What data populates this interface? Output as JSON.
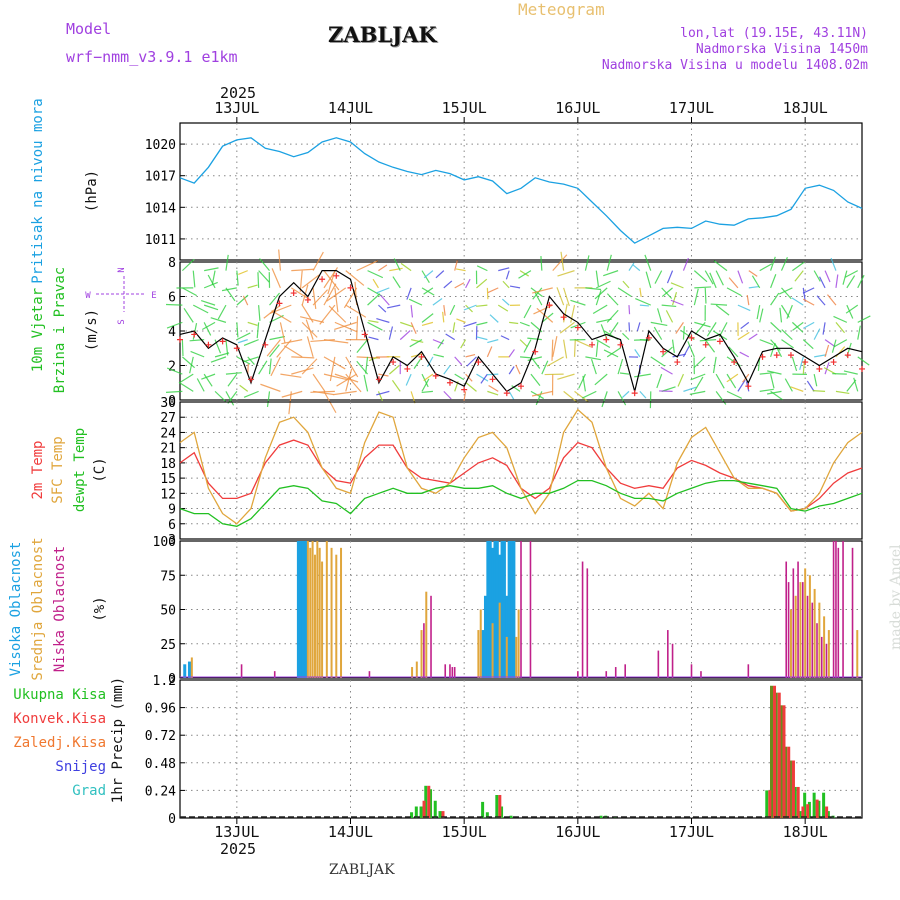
{
  "header": {
    "model_label": "Model",
    "model_name": "wrf−nmm_v3.9.1  e1km",
    "title": "ZABLJAK",
    "meteogram": "Meteogram",
    "lonlat": "lon,lat (19.15E, 43.11N)",
    "elevation": "Nadmorska Visina 1450m",
    "model_elevation": "Nadmorska Visina u modelu 1408.02m",
    "watermark": "made by Angel",
    "footer_title": "ZABLJAK"
  },
  "colors": {
    "pressure": "#1ba1e2",
    "t2m": "#f03c3c",
    "sfc_temp": "#e0a63c",
    "dewpoint": "#22c022",
    "high_cloud": "#1ba1e2",
    "mid_cloud": "#e0a63c",
    "low_cloud": "#c0208a",
    "precip_total": "#22c022",
    "precip_conv": "#f03c3c",
    "precip_strat": "#f07830",
    "snow": "#4040e0",
    "hail": "#30c0c0",
    "header_purple": "#a040e0",
    "header_gold": "#e8c070"
  },
  "chart_data": [
    {
      "type": "line",
      "panel": "pressure",
      "ylabel": [
        "Pritisak na nivou mora",
        "(hPa)"
      ],
      "ylim": [
        1009,
        1022
      ],
      "yticks": [
        1011,
        1014,
        1017,
        1020
      ],
      "x_unit": "hours from 2025-07-12 12:00",
      "x": [
        0,
        3,
        6,
        9,
        12,
        15,
        18,
        21,
        24,
        27,
        30,
        33,
        36,
        39,
        42,
        45,
        48,
        51,
        54,
        57,
        60,
        63,
        66,
        69,
        72,
        75,
        78,
        81,
        84,
        87,
        90,
        93,
        96,
        99,
        102,
        105,
        108,
        111,
        114,
        117,
        120,
        123,
        126,
        129,
        132,
        135,
        138,
        141,
        144
      ],
      "values": [
        1016.8,
        1016.3,
        1017.8,
        1019.8,
        1020.4,
        1020.6,
        1019.6,
        1019.3,
        1018.8,
        1019.2,
        1020.2,
        1020.6,
        1020.2,
        1019.1,
        1018.3,
        1017.8,
        1017.4,
        1017.1,
        1017.5,
        1017.2,
        1016.6,
        1016.9,
        1016.5,
        1015.3,
        1015.8,
        1016.8,
        1016.4,
        1016.2,
        1015.8,
        1014.5,
        1013.2,
        1011.8,
        1010.6,
        1011.3,
        1012.0,
        1012.1,
        1012.0,
        1012.7,
        1012.4,
        1012.3,
        1012.9,
        1013.0,
        1013.2,
        1013.8,
        1015.8,
        1016.1,
        1015.6,
        1014.5,
        1013.9
      ]
    },
    {
      "type": "line",
      "panel": "wind",
      "ylabel": [
        "10m Vjetar",
        "Brzina i Pravac",
        "(m/s)"
      ],
      "compass": [
        "N",
        "S",
        "W",
        "E"
      ],
      "ylim": [
        0,
        8
      ],
      "yticks": [
        0,
        2,
        4,
        6,
        8
      ],
      "x_unit": "hours from 2025-07-12 12:00",
      "x": [
        0,
        3,
        6,
        9,
        12,
        15,
        18,
        21,
        24,
        27,
        30,
        33,
        36,
        39,
        42,
        45,
        48,
        51,
        54,
        57,
        60,
        63,
        66,
        69,
        72,
        75,
        78,
        81,
        84,
        87,
        90,
        93,
        96,
        99,
        102,
        105,
        108,
        111,
        114,
        117,
        120,
        123,
        126,
        129,
        132,
        135,
        138,
        141,
        144
      ],
      "series": [
        {
          "values": [
            3.8,
            4.0,
            3.0,
            3.6,
            3.2,
            1.0,
            3.5,
            6.0,
            6.8,
            6.0,
            7.5,
            7.5,
            7.0,
            4.0,
            1.0,
            2.5,
            2.0,
            2.8,
            1.5,
            1.2,
            0.8,
            2.5,
            1.5,
            0.5,
            1.0,
            3.0,
            6.0,
            5.0,
            4.5,
            3.5,
            3.8,
            3.5,
            0.5,
            4.0,
            3.0,
            2.5,
            4.0,
            3.5,
            3.8,
            2.5,
            1.0,
            2.8,
            3.0,
            3.0,
            2.5,
            2.0,
            2.5,
            3.0,
            2.8
          ]
        },
        {
          "values": [
            3.5,
            3.8,
            3.2,
            3.4,
            3.0,
            1.2,
            3.2,
            5.6,
            6.2,
            5.8,
            7.0,
            7.2,
            6.5,
            3.8,
            1.2,
            2.2,
            1.8,
            2.5,
            1.4,
            1.0,
            0.6,
            2.2,
            1.2,
            0.4,
            0.8,
            2.8,
            5.5,
            4.8,
            4.2,
            3.2,
            3.5,
            3.2,
            0.4,
            3.6,
            2.8,
            2.2,
            3.6,
            3.2,
            3.4,
            2.2,
            0.8,
            2.5,
            2.6,
            2.6,
            2.2,
            1.8,
            2.2,
            2.6,
            1.8
          ]
        }
      ]
    },
    {
      "type": "line",
      "panel": "temperature",
      "ylabel": [
        "2m Temp",
        "SFC Temp",
        "dewpt Temp",
        "(C)"
      ],
      "ylim": [
        3,
        30
      ],
      "yticks": [
        3,
        6,
        9,
        12,
        15,
        18,
        21,
        24,
        27,
        30
      ],
      "x_unit": "hours from 2025-07-12 12:00",
      "x": [
        0,
        3,
        6,
        9,
        12,
        15,
        18,
        21,
        24,
        27,
        30,
        33,
        36,
        39,
        42,
        45,
        48,
        51,
        54,
        57,
        60,
        63,
        66,
        69,
        72,
        75,
        78,
        81,
        84,
        87,
        90,
        93,
        96,
        99,
        102,
        105,
        108,
        111,
        114,
        117,
        120,
        123,
        126,
        129,
        132,
        135,
        138,
        141,
        144
      ],
      "series": [
        {
          "name": "2m Temp",
          "values": [
            18,
            20,
            14,
            11,
            11,
            12,
            18,
            21.5,
            22.5,
            21.5,
            17,
            14.5,
            14,
            19,
            21.5,
            21.5,
            17,
            15,
            14.5,
            14,
            16,
            18,
            19,
            17.5,
            13,
            11,
            13,
            19,
            22,
            21,
            17,
            14,
            13,
            13.5,
            13,
            17,
            18.5,
            17.5,
            16,
            15,
            13.5,
            13,
            12,
            8.5,
            9,
            11,
            14,
            16,
            17
          ]
        },
        {
          "name": "SFC Temp",
          "values": [
            22,
            24,
            13,
            8,
            6,
            9,
            19,
            26,
            27,
            24,
            17,
            13,
            12,
            22,
            28,
            27,
            17,
            13,
            12,
            14,
            19,
            23,
            24,
            21,
            13,
            8,
            12,
            24,
            28.5,
            26,
            17,
            11,
            9.5,
            12,
            9,
            18,
            23,
            25,
            20,
            15,
            13,
            13,
            12,
            8.5,
            9,
            12,
            18,
            22,
            24
          ]
        },
        {
          "name": "dewpt Temp",
          "values": [
            9,
            8,
            8,
            6,
            5.5,
            7,
            10,
            13,
            13.5,
            13,
            10.5,
            10,
            8,
            11,
            12,
            13,
            12,
            12,
            13,
            13.5,
            13,
            13,
            13.5,
            12,
            11,
            12,
            12,
            13,
            14.5,
            14.5,
            13.5,
            12,
            11,
            11,
            10.5,
            12,
            13,
            14,
            14.5,
            14.5,
            14,
            13.5,
            13,
            9,
            8.5,
            9.5,
            10,
            11,
            12
          ]
        }
      ]
    },
    {
      "type": "bar",
      "panel": "clouds",
      "ylabel": [
        "Visoka Oblacnost",
        "Srednja Oblacnost",
        "Niska Oblacnost",
        "(%)"
      ],
      "ylim": [
        0,
        100
      ],
      "yticks": [
        0,
        25,
        50,
        75,
        100
      ],
      "x_unit": "hours from 2025-07-12 12:00",
      "series": [
        {
          "name": "Visoka Oblacnost",
          "x": [
            1,
            2,
            25,
            25.5,
            26,
            26.5,
            64,
            64.5,
            65,
            65.5,
            66,
            66.5,
            67,
            67.5,
            68,
            68.5,
            69,
            69.5,
            70,
            70.5
          ],
          "values": [
            10,
            12,
            100,
            100,
            100,
            100,
            35,
            60,
            100,
            100,
            95,
            100,
            100,
            90,
            100,
            100,
            60,
            100,
            100,
            100
          ]
        },
        {
          "name": "Srednja Oblacnost",
          "x": [
            2.5,
            27,
            27.5,
            28,
            28.5,
            29,
            29.5,
            30,
            31,
            32,
            33,
            34,
            49,
            50,
            51,
            52,
            63,
            63.5,
            66,
            67.5,
            69,
            71,
            71.5,
            129,
            130,
            131,
            132,
            133,
            134,
            135,
            136,
            137,
            143
          ],
          "values": [
            15,
            100,
            95,
            100,
            90,
            100,
            95,
            85,
            100,
            95,
            90,
            95,
            8,
            12,
            35,
            63,
            35,
            50,
            40,
            55,
            30,
            30,
            50,
            50,
            60,
            70,
            80,
            75,
            65,
            55,
            45,
            35,
            35
          ]
        },
        {
          "name": "Niska Oblacnost",
          "x": [
            13,
            20,
            40,
            51.5,
            53,
            56,
            57,
            57.5,
            58,
            72,
            74,
            84,
            85,
            86,
            90,
            92,
            94,
            101,
            103,
            104,
            108,
            110,
            120,
            128,
            128.5,
            129.5,
            130.5,
            131.5,
            132.5,
            133.5,
            134.5,
            135.5,
            136.5,
            138,
            138.5,
            139,
            140,
            142
          ],
          "values": [
            10,
            5,
            5,
            40,
            60,
            10,
            10,
            8,
            8,
            100,
            100,
            5,
            85,
            80,
            5,
            8,
            10,
            20,
            35,
            25,
            10,
            5,
            10,
            85,
            70,
            80,
            85,
            70,
            60,
            55,
            40,
            30,
            25,
            100,
            100,
            95,
            100,
            95
          ]
        }
      ]
    },
    {
      "type": "bar",
      "panel": "precip",
      "ylabel": [
        "1hr Precip (mm)"
      ],
      "legend": [
        "Ukupna Kisa",
        "Konvek.Kisa",
        "Zaledj.Kisa",
        "Snijeg",
        "Grad"
      ],
      "ylim": [
        0,
        1.2
      ],
      "yticks": [
        0,
        0.24,
        0.48,
        0.72,
        0.96,
        1.2
      ],
      "x_unit": "hours from 2025-07-12 12:00",
      "series": [
        {
          "name": "Ukupna Kisa",
          "x": [
            49,
            50,
            51,
            52,
            53,
            54,
            55,
            64,
            65,
            67,
            68,
            70,
            89,
            90,
            92,
            124,
            125,
            126,
            127,
            128,
            129,
            130,
            131,
            132,
            133,
            134,
            135,
            136,
            137,
            138
          ],
          "values": [
            0.05,
            0.1,
            0.1,
            0.28,
            0.25,
            0.15,
            0.06,
            0.14,
            0.05,
            0.2,
            0.1,
            0.02,
            0.02,
            0.02,
            0.01,
            0.24,
            1.15,
            1.09,
            0.98,
            0.62,
            0.5,
            0.27,
            0.06,
            0.22,
            0.14,
            0.22,
            0.15,
            0.22,
            0.06,
            0.02
          ]
        },
        {
          "name": "Konvek.Kisa",
          "x": [
            51,
            52,
            55,
            67,
            124,
            125,
            126,
            127,
            128,
            129,
            130,
            131,
            132,
            134,
            136
          ],
          "values": [
            0.15,
            0.28,
            0.06,
            0.2,
            0.24,
            1.15,
            1.09,
            0.98,
            0.62,
            0.5,
            0.27,
            0.1,
            0.12,
            0.16,
            0.1
          ]
        }
      ]
    },
    {
      "type": "axis",
      "panel": "time",
      "x_unit": "hours from 2025-07-12 12:00",
      "day_ticks_x": [
        12,
        36,
        60,
        84,
        108,
        132
      ],
      "day_labels": [
        "13JUL",
        "14JUL",
        "15JUL",
        "16JUL",
        "17JUL",
        "18JUL"
      ],
      "year": "2025",
      "xlim": [
        0,
        144
      ]
    }
  ]
}
